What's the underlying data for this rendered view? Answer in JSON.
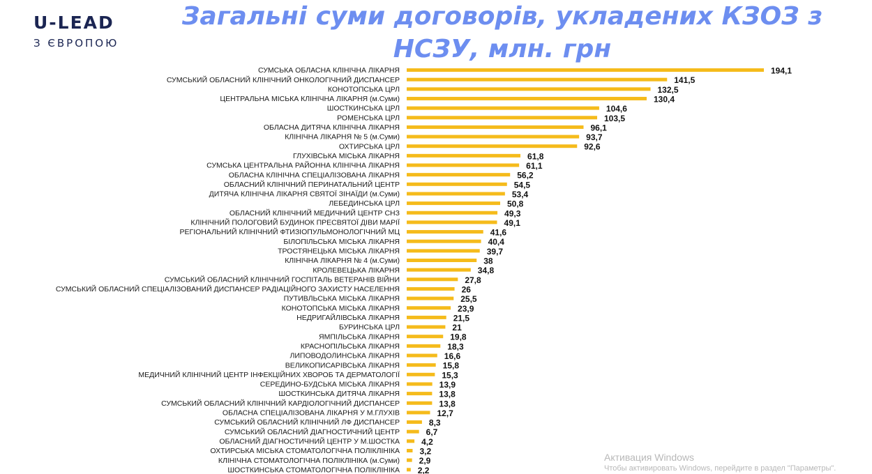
{
  "logo": {
    "main": "U-LEAD",
    "sub": "З ЄВРОПОЮ"
  },
  "title_line1": "Загальні суми договорів, укладених КЗОЗ з",
  "title_line2": "НСЗУ, млн. грн",
  "watermark": {
    "title": "Активация Windows",
    "subtitle": "Чтобы активировать Windows, перейдите в раздел \"Параметры\"."
  },
  "colors": {
    "bar": "#f5bb1b",
    "title": "#6d8ef0",
    "logo": "#1b2552"
  },
  "chart_data": {
    "type": "bar",
    "orientation": "horizontal",
    "title": "Загальні суми договорів, укладених КЗОЗ з НСЗУ, млн. грн",
    "xlabel": "",
    "ylabel": "",
    "xlim": [
      0,
      200
    ],
    "grid": false,
    "categories": [
      "СУМСЬКА ОБЛАСНА КЛІНІЧНА ЛІКАРНЯ",
      "СУМСЬКИЙ ОБЛАСНИЙ КЛІНІЧНИЙ ОНКОЛОГІЧНИЙ ДИСПАНСЕР",
      "КОНОТОПСЬКА ЦРЛ",
      "ЦЕНТРАЛЬНА МІСЬКА КЛІНІЧНА ЛІКАРНЯ (м.Суми)",
      "ШОСТКИНСЬКА ЦРЛ",
      "РОМЕНСЬКА ЦРЛ",
      "ОБЛАСНА ДИТЯЧА КЛІНІЧНА ЛІКАРНЯ",
      "КЛІНІЧНА ЛІКАРНЯ № 5 (м.Суми)",
      "ОХТИРСЬКА ЦРЛ",
      "ГЛУХІВСЬКА МІСЬКА ЛІКАРНЯ",
      "СУМСЬКА ЦЕНТРАЛЬНА РАЙОННА КЛІНІЧНА ЛІКАРНЯ",
      "ОБЛАСНА КЛІНІЧНА СПЕЦІАЛІЗОВАНА ЛІКАРНЯ",
      "ОБЛАСНИЙ КЛІНІЧНИЙ ПЕРИНАТАЛЬНИЙ ЦЕНТР",
      "ДИТЯЧА КЛІНІЧНА ЛІКАРНЯ СВЯТОЇ ЗІНАЇДИ (м.Суми)",
      "ЛЕБЕДИНСЬКА ЦРЛ",
      "ОБЛАСНИЙ КЛІНІЧНИЙ МЕДИЧНИЙ ЦЕНТР СНЗ",
      "КЛІНІЧНИЙ ПОЛОГОВИЙ БУДИНОК ПРЕСВЯТОЇ ДІВИ МАРІЇ",
      "РЕГІОНАЛЬНИЙ КЛІНІЧНИЙ ФТИЗІОПУЛЬМОНОЛОГІЧНИЙ МЦ",
      "БІЛОПІЛЬСЬКА МІСЬКА ЛІКАРНЯ",
      "ТРОСТЯНЕЦЬКА МІСЬКА ЛІКАРНЯ",
      "КЛІНІЧНА ЛІКАРНЯ № 4 (м.Суми)",
      "КРОЛЕВЕЦЬКА ЛІКАРНЯ",
      "СУМСЬКИЙ ОБЛАСНИЙ КЛІНІЧНИЙ ГОСПІТАЛЬ ВЕТЕРАНІВ ВІЙНИ",
      "СУМСЬКИЙ ОБЛАСНИЙ СПЕЦІАЛІЗОВАНИЙ ДИСПАНСЕР РАДІАЦІЙНОГО ЗАХИСТУ НАСЕЛЕННЯ",
      "ПУТИВЛЬСЬКА МІСЬКА ЛІКАРНЯ",
      "КОНОТОПСЬКА МІСЬКА ЛІКАРНЯ",
      "НЕДРИГАЙЛІВСЬКА ЛІКАРНЯ",
      "БУРИНСЬКА ЦРЛ",
      "ЯМПІЛЬСЬКА ЛІКАРНЯ",
      "КРАСНОПІЛЬСЬКА ЛІКАРНЯ",
      "ЛИПОВОДОЛИНСЬКА ЛІКАРНЯ",
      "ВЕЛИКОПИСАРІВСЬКА ЛІКАРНЯ",
      "МЕДИЧНИЙ КЛІНІЧНИЙ ЦЕНТР ІНФЕКЦІЙНИХ ХВОРОБ ТА ДЕРМАТОЛОГІЇ",
      "СЕРЕДИНО-БУДСЬКА МІСЬКА ЛІКАРНЯ",
      "ШОСТКИНСЬКА ДИТЯЧА ЛІКАРНЯ",
      "СУМСЬКИЙ ОБЛАСНИЙ КЛІНІЧНИЙ КАРДІОЛОГІЧНИЙ ДИСПАНСЕР",
      "ОБЛАСНА СПЕЦІАЛІЗОВАНА ЛІКАРНЯ У М.ГЛУХІВ",
      "СУМСЬКИЙ ОБЛАСНИЙ КЛІНІЧНИЙ ЛФ ДИСПАНСЕР",
      "СУМСЬКИЙ ОБЛАСНИЙ ДІАГНОСТИЧНИЙ ЦЕНТР",
      "ОБЛАСНИЙ ДІАГНОСТИЧНИЙ ЦЕНТР У М.ШОСТКА",
      "ОХТИРСЬКА МІСЬКА СТОМАТОЛОГІЧНА ПОЛІКЛІНІКА",
      "КЛІНІЧНА СТОМАТОЛОГІЧНА ПОЛІКЛІНІКА (м.Суми)",
      "ШОСТКИНСЬКА СТОМАТОЛОГІЧНА ПОЛІКЛІНІКА"
    ],
    "values": [
      194.1,
      141.5,
      132.5,
      130.4,
      104.6,
      103.5,
      96.1,
      93.7,
      92.6,
      61.8,
      61.1,
      56.2,
      54.5,
      53.4,
      50.8,
      49.3,
      49.1,
      41.6,
      40.4,
      39.7,
      38,
      34.8,
      27.8,
      26,
      25.5,
      23.9,
      21.5,
      21,
      19.8,
      18.3,
      16.6,
      15.8,
      15.3,
      13.9,
      13.8,
      13.8,
      12.7,
      8.3,
      6.7,
      4.2,
      3.2,
      2.9,
      2.2
    ],
    "value_labels": [
      "194,1",
      "141,5",
      "132,5",
      "130,4",
      "104,6",
      "103,5",
      "96,1",
      "93,7",
      "92,6",
      "61,8",
      "61,1",
      "56,2",
      "54,5",
      "53,4",
      "50,8",
      "49,3",
      "49,1",
      "41,6",
      "40,4",
      "39,7",
      "38",
      "34,8",
      "27,8",
      "26",
      "25,5",
      "23,9",
      "21,5",
      "21",
      "19,8",
      "18,3",
      "16,6",
      "15,8",
      "15,3",
      "13,9",
      "13,8",
      "13,8",
      "12,7",
      "8,3",
      "6,7",
      "4,2",
      "3,2",
      "2,9",
      "2,2"
    ]
  }
}
